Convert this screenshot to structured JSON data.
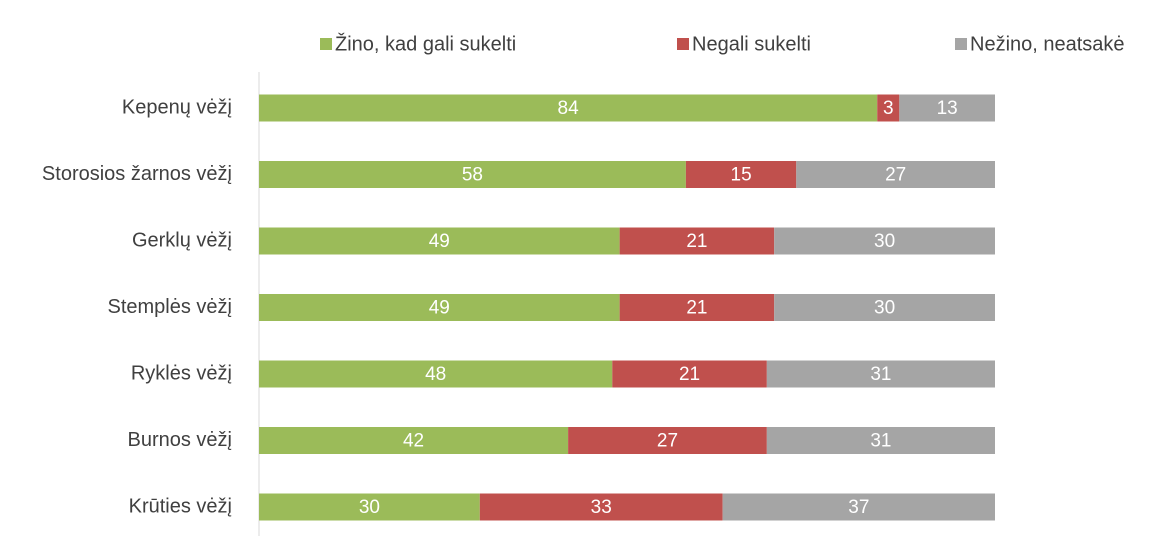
{
  "chart_data": {
    "type": "stacked_barh",
    "categories": [
      "Kepenų vėžį",
      "Storosios žarnos vėžį",
      "Gerklų vėžį",
      "Stemplės vėžį",
      "Ryklės vėžį",
      "Burnos vėžį",
      "Krūties vėžį"
    ],
    "series": [
      {
        "name": "Žino, kad gali sukelti",
        "color": "#9bbb59",
        "values": [
          84,
          58,
          49,
          49,
          48,
          42,
          30
        ]
      },
      {
        "name": "Negali sukelti",
        "color": "#c0504d",
        "values": [
          3,
          15,
          21,
          21,
          21,
          27,
          33
        ]
      },
      {
        "name": "Nežino, neatsakė",
        "color": "#a5a5a5",
        "values": [
          13,
          27,
          30,
          30,
          31,
          31,
          37
        ]
      }
    ],
    "xlim": [
      0,
      100
    ],
    "legend": "top"
  }
}
